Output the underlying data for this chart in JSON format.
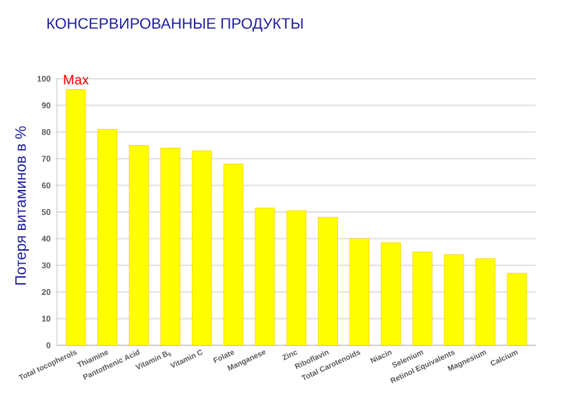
{
  "chart_data": {
    "type": "bar",
    "title": "КОНСЕРВИРОВАННЫЕ ПРОДУКТЫ",
    "ylabel": "Потеря витаминов в %",
    "categories": [
      "Total tocopherols",
      "Thiamine",
      "Pantothenic Acid",
      "Vitamin B$_{6}$",
      "Vitamin C",
      "Folate",
      "Manganese",
      "Zinc",
      "Riboflavin",
      "Total Carotenoids",
      "Niacin",
      "Selenium",
      "Retinol Equivalents",
      "Magnesium",
      "Calcium"
    ],
    "values": [
      96,
      81,
      75,
      74,
      73,
      68,
      51.5,
      50.5,
      48,
      40,
      38.5,
      35,
      34,
      32.5,
      27
    ],
    "color": "#ffff00",
    "ylim": [
      0,
      100
    ],
    "yticks": [
      0,
      10,
      20,
      30,
      40,
      50,
      60,
      70,
      80,
      90,
      100
    ],
    "grid": "y",
    "annotations": [
      {
        "text": "Max",
        "x": "Total tocopherols",
        "y": 96
      }
    ]
  }
}
